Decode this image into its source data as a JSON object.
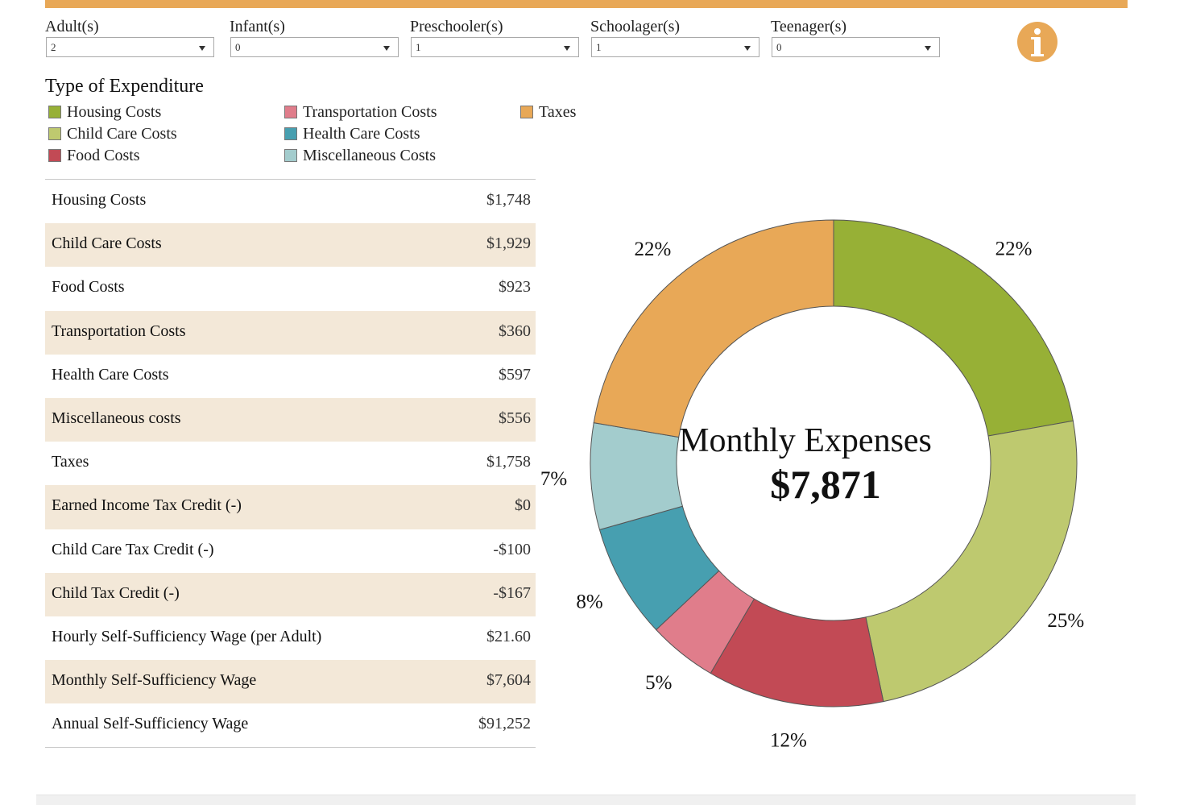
{
  "filters": [
    {
      "label": "Adult(s)",
      "value": "2"
    },
    {
      "label": "Infant(s)",
      "value": "0"
    },
    {
      "label": "Preschooler(s)",
      "value": "1"
    },
    {
      "label": "Schoolager(s)",
      "value": "1"
    },
    {
      "label": "Teenager(s)",
      "value": "0"
    }
  ],
  "legend": {
    "title": "Type of Expenditure",
    "items": [
      {
        "label": "Housing Costs",
        "color": "#97b036"
      },
      {
        "label": "Child Care Costs",
        "color": "#bec96f"
      },
      {
        "label": "Food Costs",
        "color": "#c24a55"
      },
      {
        "label": "Transportation Costs",
        "color": "#e07d8b"
      },
      {
        "label": "Health Care Costs",
        "color": "#479fb0"
      },
      {
        "label": "Miscellaneous Costs",
        "color": "#a3cccd"
      },
      {
        "label": "Taxes",
        "color": "#e8a857"
      }
    ]
  },
  "table": {
    "rows": [
      {
        "label": "Housing Costs",
        "value": "$1,748"
      },
      {
        "label": "Child Care Costs",
        "value": "$1,929"
      },
      {
        "label": "Food Costs",
        "value": "$923"
      },
      {
        "label": "Transportation Costs",
        "value": "$360"
      },
      {
        "label": "Health Care Costs",
        "value": "$597"
      },
      {
        "label": "Miscellaneous costs",
        "value": "$556"
      },
      {
        "label": "Taxes",
        "value": "$1,758"
      },
      {
        "label": "Earned Income Tax Credit (-)",
        "value": "$0"
      },
      {
        "label": "Child Care Tax Credit (-)",
        "value": "-$100"
      },
      {
        "label": "Child Tax Credit (-)",
        "value": "-$167"
      },
      {
        "label": "Hourly Self-Sufficiency Wage (per Adult)",
        "value": "$21.60"
      },
      {
        "label": "Monthly Self-Sufficiency Wage",
        "value": "$7,604"
      },
      {
        "label": "Annual Self-Sufficiency Wage",
        "value": "$91,252"
      }
    ]
  },
  "chart_data": {
    "type": "pie",
    "center_title": "Monthly Expenses",
    "center_value": "$7,871",
    "slices": [
      {
        "label": "Housing Costs",
        "value": 1748,
        "pct_label": "22%",
        "color": "#97b036"
      },
      {
        "label": "Child Care Costs",
        "value": 1929,
        "pct_label": "25%",
        "color": "#bec96f"
      },
      {
        "label": "Food Costs",
        "value": 923,
        "pct_label": "12%",
        "color": "#c24a55"
      },
      {
        "label": "Transportation Costs",
        "value": 360,
        "pct_label": "5%",
        "color": "#e07d8b"
      },
      {
        "label": "Health Care Costs",
        "value": 597,
        "pct_label": "8%",
        "color": "#479fb0"
      },
      {
        "label": "Miscellaneous Costs",
        "value": 556,
        "pct_label": "7%",
        "color": "#a3cccd"
      },
      {
        "label": "Taxes",
        "value": 1758,
        "pct_label": "22%",
        "color": "#e8a857"
      }
    ]
  }
}
